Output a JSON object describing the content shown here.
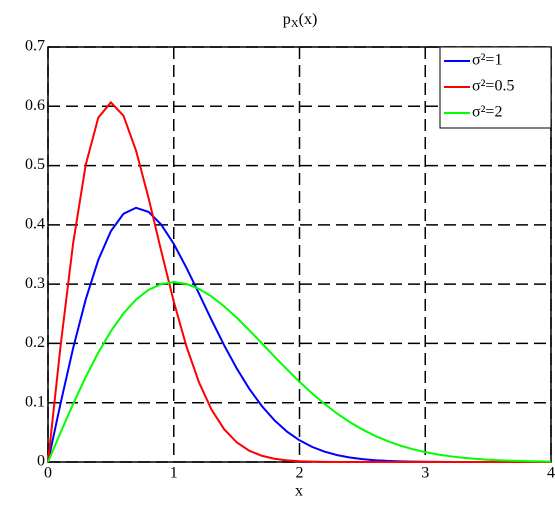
{
  "chart_data": {
    "type": "line",
    "title": [
      "p",
      "X",
      "(x)"
    ],
    "x_label": "x",
    "x": [
      0,
      0.1,
      0.2,
      0.3,
      0.4,
      0.5,
      0.6,
      0.7,
      0.8,
      0.9,
      1,
      1.1,
      1.2,
      1.3,
      1.4,
      1.5,
      1.6,
      1.7,
      1.8,
      1.9,
      2,
      2.1,
      2.2,
      2.3,
      2.4,
      2.5,
      2.6,
      2.7,
      2.8,
      2.9,
      3,
      3.1,
      3.2,
      3.3,
      3.4,
      3.5,
      3.6,
      3.7,
      3.8,
      3.9,
      4
    ],
    "series": [
      {
        "name": "σ²=1",
        "color": "#0000ff",
        "values": [
          0,
          0.099,
          0.1922,
          0.2742,
          0.3409,
          0.3894,
          0.4186,
          0.4288,
          0.4218,
          0.4005,
          0.3679,
          0.328,
          0.2843,
          0.2399,
          0.1972,
          0.1581,
          0.1237,
          0.0945,
          0.0705,
          0.0514,
          0.0366,
          0.0255,
          0.0174,
          0.0116,
          0.0076,
          0.0048,
          0.003,
          0.0018,
          0.0011,
          0.0006,
          0.0004,
          0.0002,
          0.0001,
          0.0001,
          0,
          0,
          0,
          0,
          0,
          0,
          0
        ]
      },
      {
        "name": "σ²=0.5",
        "color": "#ff0000",
        "values": [
          0,
          0.196,
          0.3692,
          0.5012,
          0.5809,
          0.6065,
          0.5842,
          0.5254,
          0.4448,
          0.3562,
          0.2707,
          0.1956,
          0.1347,
          0.0885,
          0.0555,
          0.0333,
          0.0191,
          0.0105,
          0.0055,
          0.0028,
          0.0013,
          0.0006,
          0.0003,
          0.0001,
          0,
          0,
          0,
          0,
          0,
          0,
          0,
          0,
          0,
          0,
          0,
          0,
          0,
          0,
          0,
          0,
          0
        ]
      },
      {
        "name": "σ²=2",
        "color": "#00ff00",
        "values": [
          0,
          0.0498,
          0.098,
          0.1434,
          0.1846,
          0.2206,
          0.2506,
          0.2739,
          0.2904,
          0.3002,
          0.3033,
          0.3004,
          0.2921,
          0.2793,
          0.2627,
          0.2435,
          0.2224,
          0.2003,
          0.1781,
          0.1563,
          0.1353,
          0.1158,
          0.0978,
          0.0816,
          0.0673,
          0.0549,
          0.0442,
          0.0353,
          0.0278,
          0.0216,
          0.0167,
          0.0127,
          0.0096,
          0.0071,
          0.0053,
          0.0038,
          0.0028,
          0.002,
          0.0014,
          0.001,
          0.0007
        ]
      }
    ],
    "xlim": [
      0,
      4
    ],
    "xticks": [
      0,
      1,
      2,
      3,
      4
    ],
    "ylim": [
      0,
      0.7
    ],
    "yticks": [
      0,
      0.1,
      0.2,
      0.3,
      0.4,
      0.5,
      0.6,
      0.7
    ],
    "grid": true,
    "legend": "upper right"
  }
}
